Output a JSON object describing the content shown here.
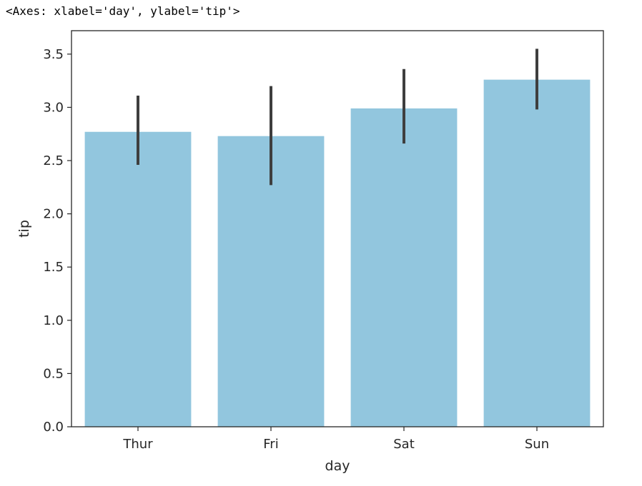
{
  "output_repr": "<Axes: xlabel='day', ylabel='tip'>",
  "chart_data": {
    "type": "bar",
    "title": "",
    "xlabel": "day",
    "ylabel": "tip",
    "categories": [
      "Thur",
      "Fri",
      "Sat",
      "Sun"
    ],
    "values": [
      2.77,
      2.73,
      2.99,
      3.26
    ],
    "error_low": [
      2.46,
      2.27,
      2.66,
      2.98
    ],
    "error_high": [
      3.11,
      3.2,
      3.36,
      3.55
    ],
    "ylim": [
      0,
      3.72
    ],
    "yticks": [
      "0.0",
      "0.5",
      "1.0",
      "1.5",
      "2.0",
      "2.5",
      "3.0",
      "3.5"
    ],
    "grid": false,
    "bar_color": "#92c6de",
    "error_color": "#3e3e3e",
    "axis_color": "#262626"
  }
}
